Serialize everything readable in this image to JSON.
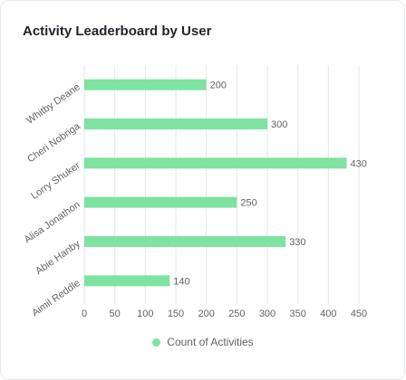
{
  "card": {
    "title": "Activity Leaderboard by User"
  },
  "colors": {
    "bar": "#7ee2a1",
    "grid": "#e6e6e6",
    "text": "#5f6368"
  },
  "chart_data": {
    "type": "bar",
    "orientation": "horizontal",
    "title": "Activity Leaderboard by User",
    "categories": [
      "Whitby Deane",
      "Cheri Nobriga",
      "Lorry Shuker",
      "Alisa Jonathon",
      "Abie Hanby",
      "Aimil Reddle"
    ],
    "series": [
      {
        "name": "Count of Activities",
        "values": [
          200,
          300,
          430,
          250,
          330,
          140
        ]
      }
    ],
    "xlim": [
      0,
      450
    ],
    "xticks": [
      0,
      50,
      100,
      150,
      200,
      250,
      300,
      350,
      400,
      450
    ],
    "grid": true,
    "data_labels": true,
    "legend": "bottom-center"
  }
}
